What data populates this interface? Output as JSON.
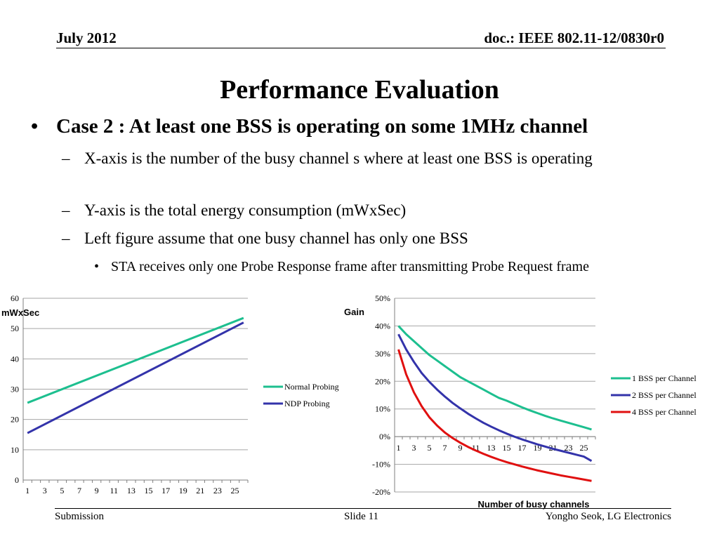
{
  "header": {
    "date": "July 2012",
    "doc": "doc.: IEEE 802.11-12/0830r0"
  },
  "title": "Performance Evaluation",
  "bullets": {
    "main": "Case 2 : At least one BSS is operating on some 1MHz channel",
    "main_marker": "•",
    "dash": "–",
    "sub_marker": "•",
    "x_axis": "X-axis is the number of the busy channel s where at least one BSS is operating",
    "y_axis": "Y-axis is the total energy consumption (mWxSec)",
    "left_fig": "Left figure assume that one busy channel has only one BSS",
    "sta": "STA receives only one Probe Response frame after transmitting Probe Request frame"
  },
  "footer": {
    "left": "Submission",
    "center": "Slide 11",
    "right": "Yongho Seok, LG Electronics"
  },
  "chart_data": [
    {
      "type": "line",
      "title": "",
      "ylabel": "mWxSec",
      "xlabel": "",
      "ylim": [
        0,
        60
      ],
      "yticks": [
        "0",
        "10",
        "20",
        "30",
        "40",
        "50",
        "60"
      ],
      "xticks": [
        "1",
        "3",
        "5",
        "7",
        "9",
        "11",
        "13",
        "15",
        "17",
        "19",
        "21",
        "23",
        "25"
      ],
      "x": [
        1,
        26
      ],
      "grid": true,
      "legend": "right",
      "series": [
        {
          "name": "Normal Probing",
          "color": "#1dbf8f",
          "values": [
            25.5,
            53.5
          ]
        },
        {
          "name": "NDP Probing",
          "color": "#3333aa",
          "values": [
            15.5,
            52.0
          ]
        }
      ]
    },
    {
      "type": "line",
      "title": "",
      "ylabel": "Gain",
      "xlabel": "Number of busy channels",
      "ylim": [
        -20,
        50
      ],
      "yticks": [
        "-20%",
        "-10%",
        "0%",
        "10%",
        "20%",
        "30%",
        "40%",
        "50%"
      ],
      "xticks": [
        "1",
        "3",
        "5",
        "7",
        "9",
        "11",
        "13",
        "15",
        "17",
        "19",
        "21",
        "23",
        "25"
      ],
      "x": [
        1,
        2,
        3,
        4,
        5,
        6,
        7,
        8,
        9,
        10,
        11,
        12,
        13,
        14,
        15,
        16,
        17,
        18,
        19,
        20,
        21,
        22,
        23,
        24,
        25,
        26
      ],
      "grid": true,
      "legend": "right",
      "series": [
        {
          "name": "1 BSS per Channel",
          "color": "#1dbf8f",
          "values": [
            40,
            37,
            34.5,
            32,
            29.5,
            27.5,
            25.5,
            23.5,
            21.5,
            20,
            18.5,
            17,
            15.5,
            14,
            13,
            11.8,
            10.6,
            9.5,
            8.5,
            7.5,
            6.6,
            5.8,
            5,
            4.2,
            3.4,
            2.6
          ]
        },
        {
          "name": "2 BSS per Channel",
          "color": "#3333aa",
          "values": [
            37,
            31.5,
            27,
            23,
            19.8,
            17,
            14.5,
            12.2,
            10.2,
            8.3,
            6.6,
            5,
            3.6,
            2.3,
            1.1,
            0,
            -1,
            -1.9,
            -2.8,
            -3.6,
            -4.4,
            -5.1,
            -5.8,
            -6.5,
            -7.2,
            -8.8
          ]
        },
        {
          "name": "4 BSS per Channel",
          "color": "#e01010",
          "values": [
            31.5,
            22.5,
            16,
            11,
            7,
            4,
            1.5,
            -0.5,
            -2.2,
            -3.7,
            -5,
            -6.2,
            -7.3,
            -8.3,
            -9.2,
            -10,
            -10.8,
            -11.5,
            -12.2,
            -12.8,
            -13.4,
            -14,
            -14.5,
            -15,
            -15.5,
            -16
          ]
        }
      ]
    }
  ]
}
